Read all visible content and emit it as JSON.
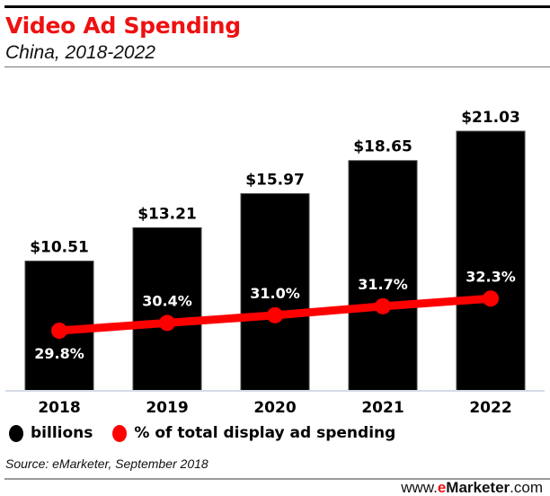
{
  "chart_data": {
    "type": "bar",
    "title": "Video Ad Spending",
    "subtitle": "China, 2018-2022",
    "categories": [
      "2018",
      "2019",
      "2020",
      "2021",
      "2022"
    ],
    "series": [
      {
        "name": "billions",
        "type": "bar",
        "color": "#000000",
        "values": [
          10.51,
          13.21,
          15.97,
          18.65,
          21.03
        ],
        "labels": [
          "$10.51",
          "$13.21",
          "$15.97",
          "$18.65",
          "$21.03"
        ]
      },
      {
        "name": "% of total display ad spending",
        "type": "line",
        "color": "#ff0000",
        "values": [
          29.8,
          30.4,
          31.0,
          31.7,
          32.3
        ],
        "labels": [
          "29.8%",
          "30.4%",
          "31.0%",
          "31.7%",
          "32.3%"
        ]
      }
    ],
    "legend_position": "bottom-left",
    "grid": false
  },
  "source": "Source: eMarketer, September 2018",
  "brand": {
    "prefix": "www.",
    "accent": "e",
    "rest": "Marketer",
    "suffix": ".com"
  }
}
